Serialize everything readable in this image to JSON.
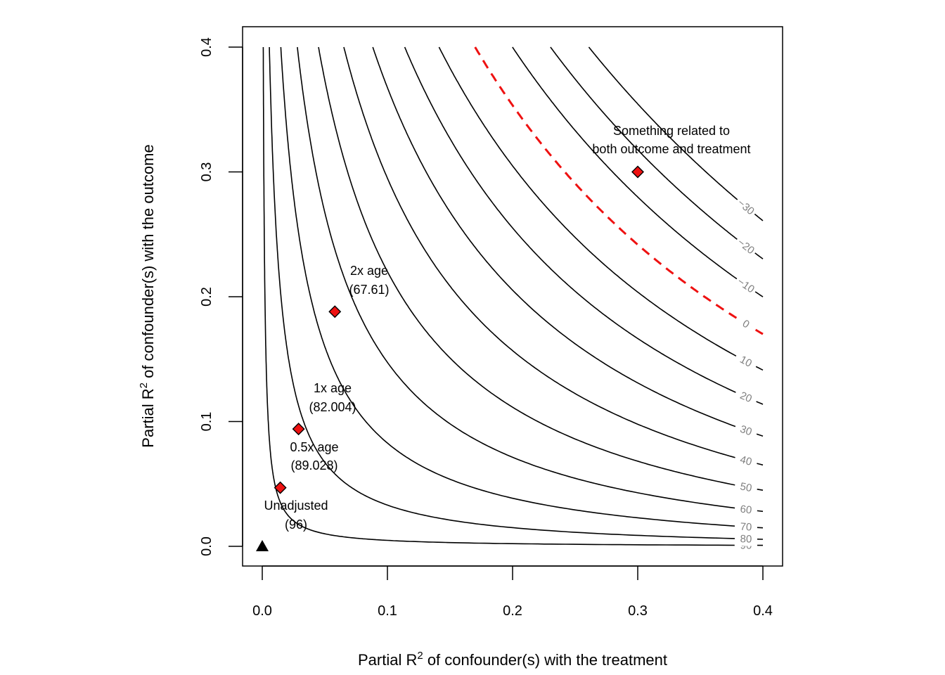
{
  "chart_data": {
    "type": "contour",
    "title": "",
    "xlabel": {
      "prefix": "Partial R",
      "sup": "2",
      "suffix": " of confounder(s) with the treatment"
    },
    "ylabel": {
      "prefix": "Partial R",
      "sup": "2",
      "suffix": " of confounder(s) with the outcome"
    },
    "xlim": [
      0,
      0.4
    ],
    "ylim": [
      0,
      0.4
    ],
    "xticks": [
      0.0,
      0.1,
      0.2,
      0.3,
      0.4
    ],
    "yticks": [
      0.0,
      0.1,
      0.2,
      0.3,
      0.4
    ],
    "xtick_labels": [
      "0.0",
      "0.1",
      "0.2",
      "0.3",
      "0.4"
    ],
    "ytick_labels": [
      "0.0",
      "0.1",
      "0.2",
      "0.3",
      "0.4"
    ],
    "estimate": 96,
    "threshold": 0,
    "threshold_color": "#ee1111",
    "contour_color": "#000000",
    "contour_levels": [
      90,
      80,
      70,
      60,
      50,
      40,
      30,
      20,
      10,
      -10,
      -20,
      -30
    ],
    "contour_labels": [
      "90",
      "80",
      "70",
      "60",
      "50",
      "40",
      "30",
      "20",
      "10",
      "0",
      "−10",
      "−20",
      "−30"
    ],
    "threshold_label": "0",
    "unadjusted": {
      "x": 0,
      "y": 0,
      "label": "Unadjusted",
      "value_label": "(96)"
    },
    "benchmarks": [
      {
        "x": 0.0144,
        "y": 0.047,
        "label": "0.5x age",
        "value_label": "(89.028)"
      },
      {
        "x": 0.029,
        "y": 0.094,
        "label": "1x age",
        "value_label": "(82.004)"
      },
      {
        "x": 0.058,
        "y": 0.188,
        "label": "2x age",
        "value_label": "(67.61)"
      },
      {
        "x": 0.3,
        "y": 0.3,
        "label_line1": "Something related to",
        "label_line2": "both outcome and treatment"
      }
    ],
    "marker_color": "#ee1111"
  }
}
